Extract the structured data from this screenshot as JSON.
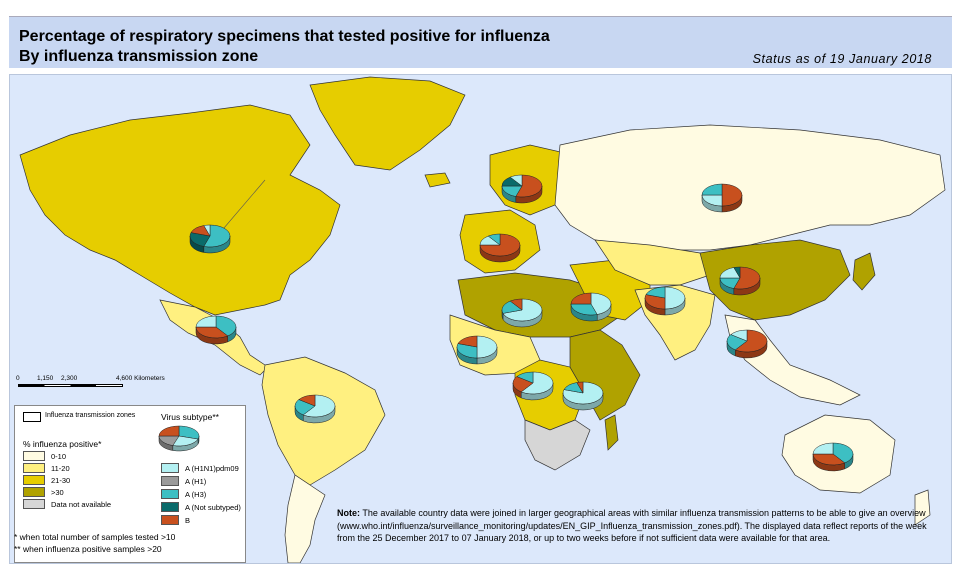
{
  "header": {
    "title_line1": "Percentage of respiratory specimens that tested positive for influenza",
    "title_line2": "By influenza transmission zone",
    "status": "Status as of 19 January 2018"
  },
  "scale": {
    "ticks": [
      "0",
      "1,150",
      "2,300",
      "4,600 Kilometers"
    ]
  },
  "legend": {
    "zone_label": "Influenza transmission zones",
    "virus_label": "Virus subtype**",
    "pct_label": "% influenza positive*",
    "pct_classes": [
      {
        "label": "0-10",
        "color": "#fffbe2"
      },
      {
        "label": "11-20",
        "color": "#fff080"
      },
      {
        "label": "21-30",
        "color": "#e6cd00"
      },
      {
        "label": ">30",
        "color": "#b0a200"
      },
      {
        "label": "Data not available",
        "color": "#d6d6d6"
      }
    ],
    "subtypes": [
      {
        "label": "A (H1N1)pdm09",
        "color": "#b3f0f2"
      },
      {
        "label": "A (H1)",
        "color": "#9a9a9a"
      },
      {
        "label": "A (H3)",
        "color": "#3dbfc3"
      },
      {
        "label": "A (Not subtyped)",
        "color": "#0a6a6a"
      },
      {
        "label": "B",
        "color": "#c8501e"
      }
    ]
  },
  "footnotes": {
    "line1": "*   when total number of samples tested >10",
    "line2": "** when influenza positive samples >20"
  },
  "note": {
    "label": "Note:",
    "text": "The available country data were joined in larger geographical areas with similar influenza transmission patterns to be able to give an overview (www.who.int/influenza/surveillance_monitoring/updates/EN_GIP_Influenza_transmission_zones.pdf). The displayed data reflect reports of the week from the 25 December 2017 to 07 January 2018, or up to two weeks before if not sufficient data were available for that area."
  },
  "colors": {
    "ocean": "#dce8fb",
    "header_bg": "#c8d7f2"
  },
  "zones": [
    {
      "name": "north-america",
      "class": "21-30"
    },
    {
      "name": "central-america",
      "class": "11-20"
    },
    {
      "name": "south-america-tropical",
      "class": "11-20"
    },
    {
      "name": "south-america-temperate",
      "class": "0-10"
    },
    {
      "name": "greenland",
      "class": "21-30"
    },
    {
      "name": "northern-europe",
      "class": "21-30"
    },
    {
      "name": "eastern-europe",
      "class": "0-10"
    },
    {
      "name": "south-west-europe",
      "class": "21-30"
    },
    {
      "name": "northern-africa",
      "class": ">30"
    },
    {
      "name": "western-africa",
      "class": "11-20"
    },
    {
      "name": "middle-africa",
      "class": "21-30"
    },
    {
      "name": "eastern-africa",
      "class": ">30"
    },
    {
      "name": "southern-africa",
      "class": "Data not available"
    },
    {
      "name": "western-asia",
      "class": "21-30"
    },
    {
      "name": "central-asia",
      "class": "11-20"
    },
    {
      "name": "eastern-asia",
      "class": ">30"
    },
    {
      "name": "southern-asia",
      "class": "11-20"
    },
    {
      "name": "south-east-asia",
      "class": "0-10"
    },
    {
      "name": "oceania",
      "class": "0-10"
    }
  ],
  "pies": [
    {
      "name": "north-america",
      "slices": [
        {
          "subtype": "A (H3)",
          "share": 0.55
        },
        {
          "subtype": "A (Not subtyped)",
          "share": 0.25
        },
        {
          "subtype": "B",
          "share": 0.15
        },
        {
          "subtype": "A (H1N1)pdm09",
          "share": 0.05
        }
      ]
    },
    {
      "name": "central-america",
      "slices": [
        {
          "subtype": "A (H3)",
          "share": 0.4
        },
        {
          "subtype": "B",
          "share": 0.35
        },
        {
          "subtype": "A (H1N1)pdm09",
          "share": 0.25
        }
      ]
    },
    {
      "name": "tropical-south-america",
      "slices": [
        {
          "subtype": "A (H1N1)pdm09",
          "share": 0.6
        },
        {
          "subtype": "A (H3)",
          "share": 0.25
        },
        {
          "subtype": "B",
          "share": 0.15
        }
      ]
    },
    {
      "name": "northern-europe",
      "slices": [
        {
          "subtype": "B",
          "share": 0.55
        },
        {
          "subtype": "A (H3)",
          "share": 0.2
        },
        {
          "subtype": "A (Not subtyped)",
          "share": 0.15
        },
        {
          "subtype": "A (H1N1)pdm09",
          "share": 0.1
        }
      ]
    },
    {
      "name": "south-west-europe",
      "slices": [
        {
          "subtype": "B",
          "share": 0.75
        },
        {
          "subtype": "A (H1N1)pdm09",
          "share": 0.15
        },
        {
          "subtype": "A (H3)",
          "share": 0.1
        }
      ]
    },
    {
      "name": "eastern-europe",
      "slices": [
        {
          "subtype": "B",
          "share": 0.5
        },
        {
          "subtype": "A (H1N1)pdm09",
          "share": 0.25
        },
        {
          "subtype": "A (H3)",
          "share": 0.25
        }
      ]
    },
    {
      "name": "northern-africa",
      "slices": [
        {
          "subtype": "A (H1N1)pdm09",
          "share": 0.7
        },
        {
          "subtype": "A (H3)",
          "share": 0.2
        },
        {
          "subtype": "B",
          "share": 0.1
        }
      ]
    },
    {
      "name": "western-asia",
      "slices": [
        {
          "subtype": "A (H1N1)pdm09",
          "share": 0.45
        },
        {
          "subtype": "A (H3)",
          "share": 0.3
        },
        {
          "subtype": "B",
          "share": 0.25
        }
      ]
    },
    {
      "name": "southern-asia",
      "slices": [
        {
          "subtype": "A (H1N1)pdm09",
          "share": 0.5
        },
        {
          "subtype": "B",
          "share": 0.3
        },
        {
          "subtype": "A (H3)",
          "share": 0.2
        }
      ]
    },
    {
      "name": "eastern-asia",
      "slices": [
        {
          "subtype": "B",
          "share": 0.55
        },
        {
          "subtype": "A (H3)",
          "share": 0.2
        },
        {
          "subtype": "A (H1N1)pdm09",
          "share": 0.2
        },
        {
          "subtype": "A (Not subtyped)",
          "share": 0.05
        }
      ]
    },
    {
      "name": "south-east-asia",
      "slices": [
        {
          "subtype": "B",
          "share": 0.6
        },
        {
          "subtype": "A (H3)",
          "share": 0.25
        },
        {
          "subtype": "A (H1N1)pdm09",
          "share": 0.15
        }
      ]
    },
    {
      "name": "western-africa",
      "slices": [
        {
          "subtype": "A (H1N1)pdm09",
          "share": 0.5
        },
        {
          "subtype": "A (H3)",
          "share": 0.3
        },
        {
          "subtype": "B",
          "share": 0.2
        }
      ]
    },
    {
      "name": "middle-africa",
      "slices": [
        {
          "subtype": "A (H1N1)pdm09",
          "share": 0.6
        },
        {
          "subtype": "B",
          "share": 0.25
        },
        {
          "subtype": "A (H3)",
          "share": 0.15
        }
      ]
    },
    {
      "name": "eastern-africa",
      "slices": [
        {
          "subtype": "A (H1N1)pdm09",
          "share": 0.8
        },
        {
          "subtype": "A (H3)",
          "share": 0.15
        },
        {
          "subtype": "B",
          "share": 0.05
        }
      ]
    },
    {
      "name": "oceania",
      "slices": [
        {
          "subtype": "A (H3)",
          "share": 0.4
        },
        {
          "subtype": "B",
          "share": 0.35
        },
        {
          "subtype": "A (H1N1)pdm09",
          "share": 0.25
        }
      ]
    },
    {
      "name": "legend-sample",
      "slices": [
        {
          "subtype": "A (H3)",
          "share": 0.3
        },
        {
          "subtype": "A (H1N1)pdm09",
          "share": 0.25
        },
        {
          "subtype": "A (H1)",
          "share": 0.2
        },
        {
          "subtype": "B",
          "share": 0.25
        }
      ]
    }
  ]
}
